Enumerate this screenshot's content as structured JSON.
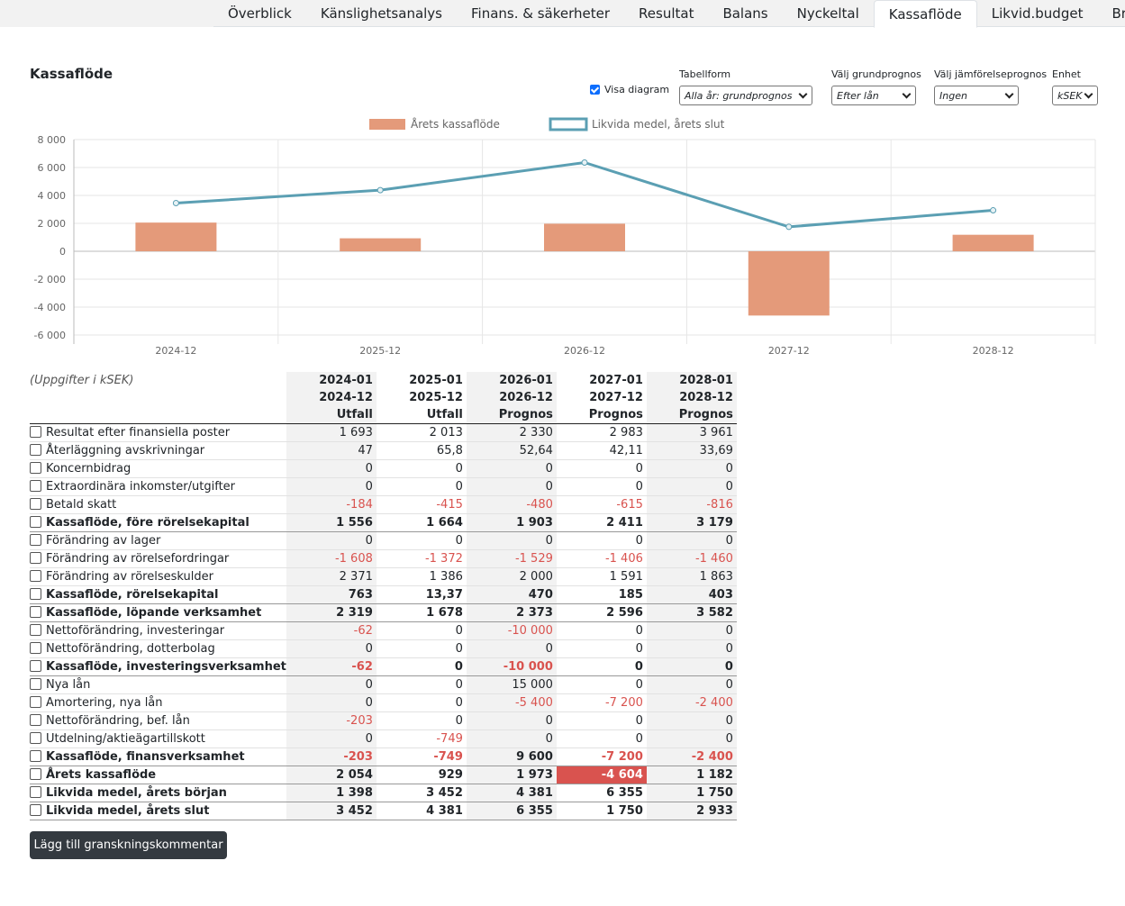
{
  "tabs": [
    "Överblick",
    "Känslighetsanalys",
    "Finans. & säkerheter",
    "Resultat",
    "Balans",
    "Nyckeltal",
    "Kassaflöde",
    "Likvid.budget",
    "Bransch"
  ],
  "active_tab": "Kassaflöde",
  "page": {
    "title": "Kassaflöde"
  },
  "controls": {
    "visa_diagram": "Visa diagram",
    "tabellform": {
      "label": "Tabellform",
      "value": "Alla år: grundprognos"
    },
    "grundprognos": {
      "label": "Välj grundprognos",
      "value": "Efter lån"
    },
    "jamforelse": {
      "label": "Välj jämförelseprognos",
      "value": "Ingen"
    },
    "enhet": {
      "label": "Enhet",
      "value": "kSEK"
    }
  },
  "chart_data": {
    "type": "bar",
    "categories": [
      "2024-12",
      "2025-12",
      "2026-12",
      "2027-12",
      "2028-12"
    ],
    "series": [
      {
        "name": "Årets kassaflöde",
        "type": "bar",
        "color": "#e49a7a",
        "values": [
          2054,
          929,
          1973,
          -4604,
          1182
        ]
      },
      {
        "name": "Likvida medel, årets slut",
        "type": "line",
        "color": "#5b9fb3",
        "values": [
          3452,
          4381,
          6355,
          1750,
          2933
        ]
      }
    ],
    "yticks": [
      "8 000",
      "6 000",
      "4 000",
      "2 000",
      "0",
      "-2 000",
      "-4 000",
      "-6 000"
    ],
    "ylim": [
      -6000,
      8000
    ],
    "grid": true,
    "legend": "top-center"
  },
  "table": {
    "unit_note": "(Uppgifter i kSEK)",
    "columns": [
      {
        "from": "2024-01",
        "to": "2024-12",
        "kind": "Utfall"
      },
      {
        "from": "2025-01",
        "to": "2025-12",
        "kind": "Utfall"
      },
      {
        "from": "2026-01",
        "to": "2026-12",
        "kind": "Prognos"
      },
      {
        "from": "2027-01",
        "to": "2027-12",
        "kind": "Prognos"
      },
      {
        "from": "2028-01",
        "to": "2028-12",
        "kind": "Prognos"
      }
    ],
    "rows": [
      {
        "label": "Resultat efter finansiella poster",
        "values": [
          "1 693",
          "2 013",
          "2 330",
          "2 983",
          "3 961"
        ]
      },
      {
        "label": "Återläggning avskrivningar",
        "values": [
          "47",
          "65,8",
          "52,64",
          "42,11",
          "33,69"
        ]
      },
      {
        "label": "Koncernbidrag",
        "values": [
          "0",
          "0",
          "0",
          "0",
          "0"
        ]
      },
      {
        "label": "Extraordinära inkomster/utgifter",
        "values": [
          "0",
          "0",
          "0",
          "0",
          "0"
        ]
      },
      {
        "label": "Betald skatt",
        "values": [
          "-184",
          "-415",
          "-480",
          "-615",
          "-816"
        ]
      },
      {
        "label": "Kassaflöde, före rörelsekapital",
        "bold": true,
        "values": [
          "1 556",
          "1 664",
          "1 903",
          "2 411",
          "3 179"
        ]
      },
      {
        "label": "Förändring av lager",
        "values": [
          "0",
          "0",
          "0",
          "0",
          "0"
        ]
      },
      {
        "label": "Förändring av rörelsefordringar",
        "values": [
          "-1 608",
          "-1 372",
          "-1 529",
          "-1 406",
          "-1 460"
        ]
      },
      {
        "label": "Förändring av rörelseskulder",
        "values": [
          "2 371",
          "1 386",
          "2 000",
          "1 591",
          "1 863"
        ]
      },
      {
        "label": "Kassaflöde, rörelsekapital",
        "bold": true,
        "values": [
          "763",
          "13,37",
          "470",
          "185",
          "403"
        ]
      },
      {
        "label": "Kassaflöde, löpande verksamhet",
        "bold": true,
        "values": [
          "2 319",
          "1 678",
          "2 373",
          "2 596",
          "3 582"
        ]
      },
      {
        "label": "Nettoförändring, investeringar",
        "values": [
          "-62",
          "0",
          "-10 000",
          "0",
          "0"
        ]
      },
      {
        "label": "Nettoförändring, dotterbolag",
        "values": [
          "0",
          "0",
          "0",
          "0",
          "0"
        ]
      },
      {
        "label": "Kassaflöde, investeringsverksamhet",
        "bold": true,
        "values": [
          "-62",
          "0",
          "-10 000",
          "0",
          "0"
        ]
      },
      {
        "label": "Nya lån",
        "values": [
          "0",
          "0",
          "15 000",
          "0",
          "0"
        ]
      },
      {
        "label": "Amortering, nya lån",
        "values": [
          "0",
          "0",
          "-5 400",
          "-7 200",
          "-2 400"
        ]
      },
      {
        "label": "Nettoförändring, bef. lån",
        "values": [
          "-203",
          "0",
          "0",
          "0",
          "0"
        ]
      },
      {
        "label": "Utdelning/aktieägartillskott",
        "values": [
          "0",
          "-749",
          "0",
          "0",
          "0"
        ]
      },
      {
        "label": "Kassaflöde, finansverksamhet",
        "bold": true,
        "values": [
          "-203",
          "-749",
          "9 600",
          "-7 200",
          "-2 400"
        ]
      },
      {
        "label": "Årets kassaflöde",
        "bold": true,
        "values": [
          "2 054",
          "929",
          "1 973",
          "-4 604",
          "1 182"
        ],
        "highlight_index": 3
      },
      {
        "label": "Likvida medel, årets början",
        "bold": true,
        "values": [
          "1 398",
          "3 452",
          "4 381",
          "6 355",
          "1 750"
        ]
      },
      {
        "label": "Likvida medel, årets slut",
        "bold": true,
        "values": [
          "3 452",
          "4 381",
          "6 355",
          "1 750",
          "2 933"
        ]
      }
    ]
  },
  "button": {
    "label": "Lägg till granskningskommentar"
  }
}
